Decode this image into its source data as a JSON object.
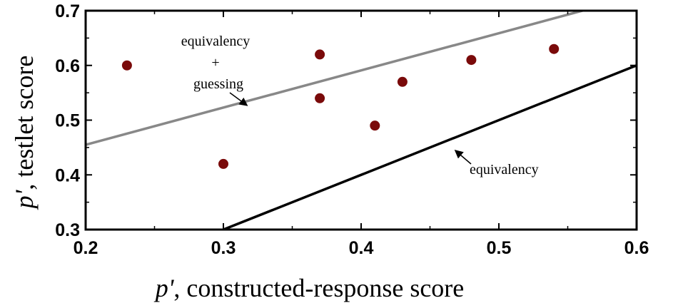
{
  "chart_data": {
    "type": "scatter",
    "title": "",
    "xlabel_prefix": "p'",
    "xlabel_rest": ", constructed-response score",
    "ylabel_prefix": "p'",
    "ylabel_rest": ", testlet score",
    "xlim": [
      0.2,
      0.6
    ],
    "ylim": [
      0.3,
      0.7
    ],
    "x_ticks": [
      0.2,
      0.3,
      0.4,
      0.5,
      0.6
    ],
    "y_ticks": [
      0.3,
      0.4,
      0.5,
      0.6,
      0.7
    ],
    "x_tick_labels": [
      "0.2",
      "0.3",
      "0.4",
      "0.5",
      "0.6"
    ],
    "y_tick_labels": [
      "0.3",
      "0.4",
      "0.5",
      "0.6",
      "0.7"
    ],
    "grid": false,
    "points": {
      "color": "#7a0a0a",
      "x": [
        0.23,
        0.3,
        0.37,
        0.37,
        0.41,
        0.43,
        0.48,
        0.54
      ],
      "y": [
        0.6,
        0.42,
        0.62,
        0.54,
        0.49,
        0.57,
        0.61,
        0.63
      ]
    },
    "lines": [
      {
        "label": "equivalency",
        "color": "#000000",
        "x": [
          0.3,
          0.6
        ],
        "y": [
          0.3,
          0.6
        ]
      },
      {
        "label_line1": "equivalency",
        "label_line2": "+",
        "label_line3": "guessing",
        "color": "#888888",
        "x": [
          0.2,
          0.59
        ],
        "y": [
          0.455,
          0.72
        ]
      }
    ]
  }
}
